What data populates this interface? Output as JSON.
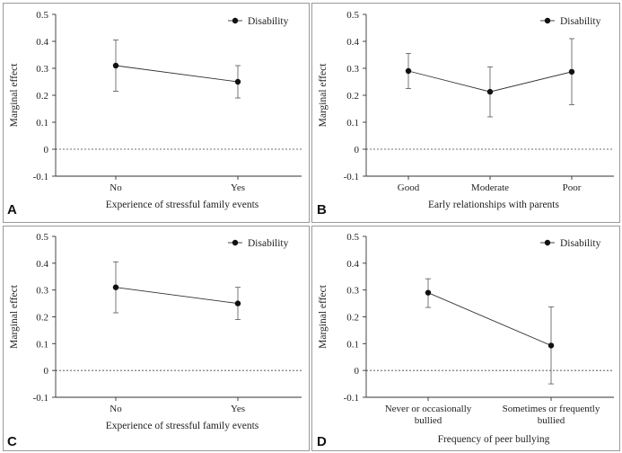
{
  "chart_data": [
    {
      "type": "line",
      "panel": "A",
      "title": "",
      "xlabel": "Experience of stressful family events",
      "ylabel": "Marginal effect",
      "categories": [
        "No",
        "Yes"
      ],
      "ylim": [
        -0.1,
        0.5
      ],
      "yticks": [
        "0.5",
        "0.4",
        "0.3",
        "0.2",
        "0.1",
        "0",
        "-0.1"
      ],
      "legend": "top-right",
      "series": [
        {
          "name": "Disability",
          "values": [
            0.31,
            0.25
          ],
          "lower": [
            0.215,
            0.19
          ],
          "upper": [
            0.405,
            0.31
          ]
        }
      ]
    },
    {
      "type": "line",
      "panel": "B",
      "title": "",
      "xlabel": "Early relationships with parents",
      "ylabel": "Marginal effect",
      "categories": [
        "Good",
        "Moderate",
        "Poor"
      ],
      "ylim": [
        -0.1,
        0.5
      ],
      "yticks": [
        "0.5",
        "0.4",
        "0.3",
        "0.2",
        "0.1",
        "0",
        "-0.1"
      ],
      "legend": "top-right",
      "series": [
        {
          "name": "Disability",
          "values": [
            0.29,
            0.213,
            0.287
          ],
          "lower": [
            0.225,
            0.12,
            0.165
          ],
          "upper": [
            0.355,
            0.305,
            0.41
          ]
        }
      ]
    },
    {
      "type": "line",
      "panel": "C",
      "title": "",
      "xlabel": "Experience of stressful family events",
      "ylabel": "Marginal effect",
      "categories": [
        "No",
        "Yes"
      ],
      "ylim": [
        -0.1,
        0.5
      ],
      "yticks": [
        "0.5",
        "0.4",
        "0.3",
        "0.2",
        "0.1",
        "0",
        "-0.1"
      ],
      "legend": "top-right",
      "series": [
        {
          "name": "Disability",
          "values": [
            0.31,
            0.25
          ],
          "lower": [
            0.215,
            0.19
          ],
          "upper": [
            0.405,
            0.31
          ]
        }
      ]
    },
    {
      "type": "line",
      "panel": "D",
      "title": "",
      "xlabel": "Frequency of peer bullying",
      "ylabel": "Marginal effect",
      "categories": [
        "Never or occasionally bullied",
        "Sometimes or frequently bullied"
      ],
      "category_lines": [
        [
          "Never or occasionally",
          "bullied"
        ],
        [
          "Sometimes or frequently",
          "bullied"
        ]
      ],
      "ylim": [
        -0.1,
        0.5
      ],
      "yticks": [
        "0.5",
        "0.4",
        "0.3",
        "0.2",
        "0.1",
        "0",
        "-0.1"
      ],
      "legend": "top-right",
      "series": [
        {
          "name": "Disability",
          "values": [
            0.29,
            0.093
          ],
          "lower": [
            0.235,
            -0.05
          ],
          "upper": [
            0.342,
            0.237
          ]
        }
      ]
    }
  ]
}
